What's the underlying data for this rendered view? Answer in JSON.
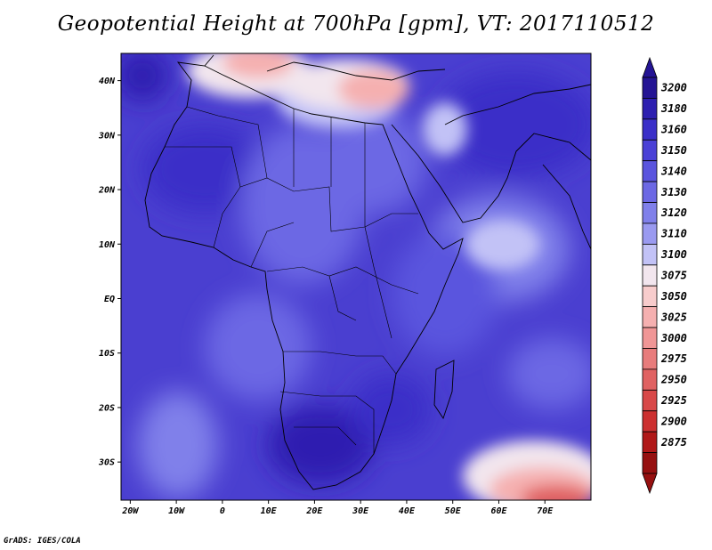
{
  "title": "Geopotential Height at 700hPa [gpm], VT: 2017110512",
  "credit": "GrADS: IGES/COLA",
  "map": {
    "lon_range": [
      -22,
      80
    ],
    "lat_range": [
      -37,
      45
    ],
    "lat_ticks": [
      "40N",
      "30N",
      "20N",
      "10N",
      "EQ",
      "10S",
      "20S",
      "30S"
    ],
    "lat_values": [
      40,
      30,
      20,
      10,
      0,
      -10,
      -20,
      -30
    ],
    "lon_ticks": [
      "20W",
      "10W",
      "0",
      "10E",
      "20E",
      "30E",
      "40E",
      "50E",
      "60E",
      "70E"
    ],
    "lon_values": [
      -20,
      -10,
      0,
      10,
      20,
      30,
      40,
      50,
      60,
      70
    ],
    "background_color": "#4a3fd0"
  },
  "colorbar": {
    "levels": [
      "3200",
      "3180",
      "3160",
      "3150",
      "3140",
      "3130",
      "3120",
      "3110",
      "3100",
      "3075",
      "3050",
      "3025",
      "3000",
      "2975",
      "2950",
      "2925",
      "2900",
      "2875"
    ],
    "colors": [
      "#241494",
      "#2d1fb0",
      "#3a2fc8",
      "#4a40d6",
      "#5a54de",
      "#6c68e4",
      "#8080ea",
      "#9a9af0",
      "#c2c2f6",
      "#f2e6ee",
      "#f7cccc",
      "#f5b0b0",
      "#f09696",
      "#e87c7c",
      "#e06262",
      "#d84848",
      "#cc3030",
      "#b01818",
      "#961010"
    ]
  }
}
